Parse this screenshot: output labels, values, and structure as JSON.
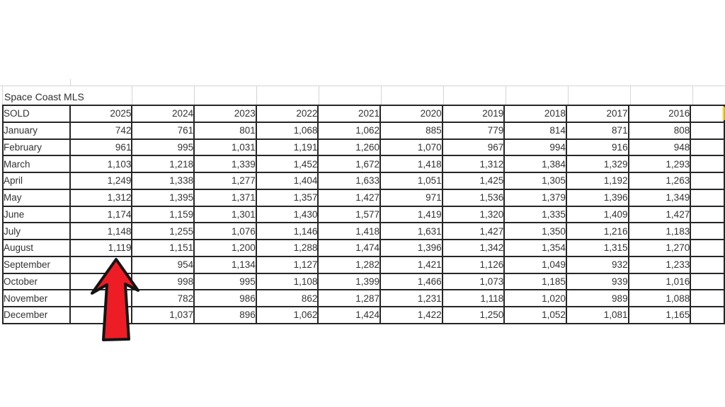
{
  "title": "Space Coast MLS",
  "table": {
    "corner_label": "SOLD",
    "years": [
      "2025",
      "2024",
      "2023",
      "2022",
      "2021",
      "2020",
      "2019",
      "2018",
      "2017",
      "2016"
    ],
    "rows": [
      {
        "month": "January",
        "values": [
          "742",
          "761",
          "801",
          "1,068",
          "1,062",
          "885",
          "779",
          "814",
          "871",
          "808"
        ]
      },
      {
        "month": "February",
        "values": [
          "961",
          "995",
          "1,031",
          "1,191",
          "1,260",
          "1,070",
          "967",
          "994",
          "916",
          "948"
        ]
      },
      {
        "month": "March",
        "values": [
          "1,103",
          "1,218",
          "1,339",
          "1,452",
          "1,672",
          "1,418",
          "1,312",
          "1,384",
          "1,329",
          "1,293"
        ]
      },
      {
        "month": "April",
        "values": [
          "1,249",
          "1,338",
          "1,277",
          "1,404",
          "1,633",
          "1,051",
          "1,425",
          "1,305",
          "1,192",
          "1,263"
        ]
      },
      {
        "month": "May",
        "values": [
          "1,312",
          "1,395",
          "1,371",
          "1,357",
          "1,427",
          "971",
          "1,536",
          "1,379",
          "1,396",
          "1,349"
        ]
      },
      {
        "month": "June",
        "values": [
          "1,174",
          "1,159",
          "1,301",
          "1,430",
          "1,577",
          "1,419",
          "1,320",
          "1,335",
          "1,409",
          "1,427"
        ]
      },
      {
        "month": "July",
        "values": [
          "1,148",
          "1,255",
          "1,076",
          "1,146",
          "1,418",
          "1,631",
          "1,427",
          "1,350",
          "1,216",
          "1,183"
        ]
      },
      {
        "month": "August",
        "values": [
          "1,119",
          "1,151",
          "1,200",
          "1,288",
          "1,474",
          "1,396",
          "1,342",
          "1,354",
          "1,315",
          "1,270"
        ]
      },
      {
        "month": "September",
        "values": [
          "",
          "954",
          "1,134",
          "1,127",
          "1,282",
          "1,421",
          "1,126",
          "1,049",
          "932",
          "1,233"
        ]
      },
      {
        "month": "October",
        "values": [
          "",
          "998",
          "995",
          "1,108",
          "1,399",
          "1,466",
          "1,073",
          "1,185",
          "939",
          "1,016"
        ]
      },
      {
        "month": "November",
        "values": [
          "",
          "782",
          "986",
          "862",
          "1,287",
          "1,231",
          "1,118",
          "1,020",
          "989",
          "1,088"
        ]
      },
      {
        "month": "December",
        "values": [
          "",
          "1,037",
          "896",
          "1,062",
          "1,424",
          "1,422",
          "1,250",
          "1,052",
          "1,081",
          "1,165"
        ]
      }
    ]
  },
  "annotation": {
    "icon": "red-up-arrow-icon",
    "arrow_fill": "#ee1c25",
    "arrow_outline": "#141414"
  },
  "colors": {
    "table_border": "#262626",
    "cell_text": "#333333",
    "header_text": "#000000",
    "gridline": "#d4d4d4",
    "highlight_sliver": "#ffe14d"
  }
}
